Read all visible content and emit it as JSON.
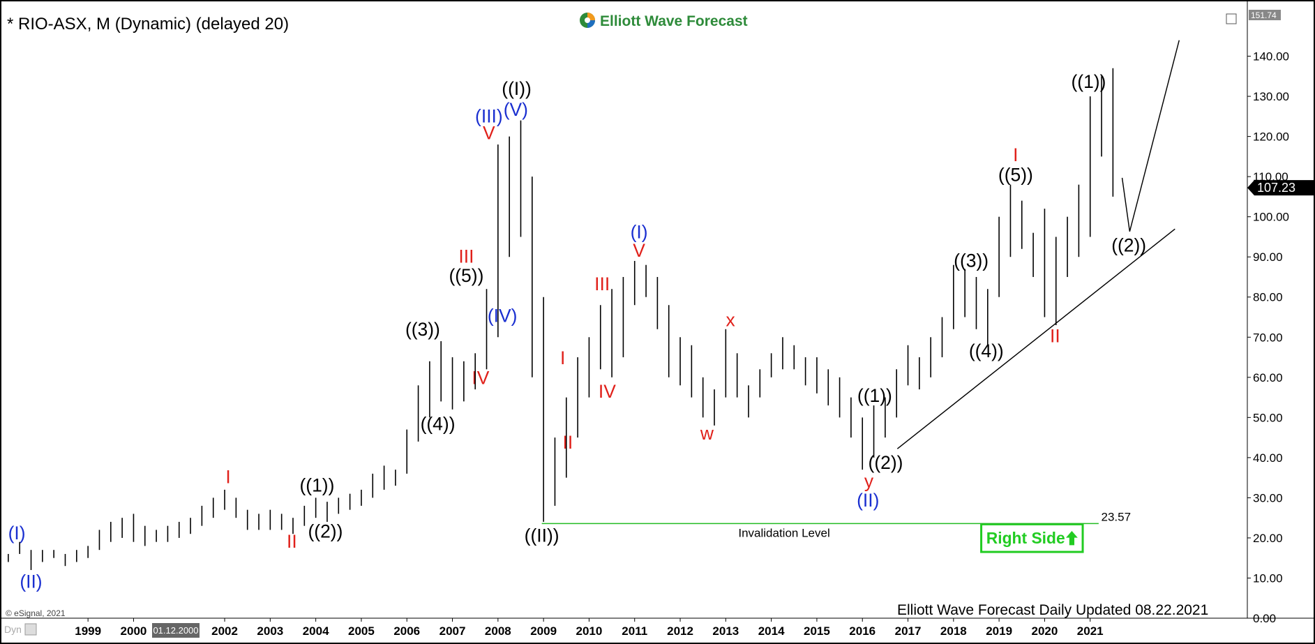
{
  "chart_data": {
    "type": "ohlc",
    "title": "* RIO-ASX, M (Dynamic) (delayed 20)",
    "logo": "Elliott Wave Forecast",
    "footer": "Elliott Wave Forecast Daily Updated 08.22.2021",
    "copyright": "© eSignal, 2021",
    "corner_label": "Dyn",
    "cursor_label": "01.12.2000",
    "color": "#000000",
    "x": [
      1997.25,
      1997.5,
      1997.75,
      1998,
      1998.25,
      1998.5,
      1998.75,
      1999,
      1999.25,
      1999.5,
      1999.75,
      2000,
      2000.25,
      2000.5,
      2000.75,
      2001,
      2001.25,
      2001.5,
      2001.75,
      2002,
      2002.25,
      2002.5,
      2002.75,
      2003,
      2003.25,
      2003.5,
      2003.75,
      2004,
      2004.25,
      2004.5,
      2004.75,
      2005,
      2005.25,
      2005.5,
      2005.75,
      2006,
      2006.25,
      2006.5,
      2006.75,
      2007,
      2007.25,
      2007.5,
      2007.75,
      2008,
      2008.25,
      2008.5,
      2008.75,
      2009,
      2009.25,
      2009.5,
      2009.75,
      2010,
      2010.25,
      2010.5,
      2010.75,
      2011,
      2011.25,
      2011.5,
      2011.75,
      2012,
      2012.25,
      2012.5,
      2012.75,
      2013,
      2013.25,
      2013.5,
      2013.75,
      2014,
      2014.25,
      2014.5,
      2014.75,
      2015,
      2015.25,
      2015.5,
      2015.75,
      2016,
      2016.25,
      2016.5,
      2016.75,
      2017,
      2017.25,
      2017.5,
      2017.75,
      2018,
      2018.25,
      2018.5,
      2018.75,
      2019,
      2019.25,
      2019.5,
      2019.75,
      2020,
      2020.25,
      2020.5,
      2020.75,
      2021,
      2021.25,
      2021.5
    ],
    "low": [
      14,
      16,
      12,
      14,
      15,
      13,
      14,
      15,
      17,
      19,
      20,
      19,
      18,
      19,
      19,
      20,
      21,
      23,
      25,
      27,
      25,
      22,
      22,
      22,
      22,
      21,
      23,
      25,
      24,
      26,
      27,
      28,
      30,
      32,
      33,
      36,
      44,
      50,
      54,
      52,
      54,
      57,
      62,
      70,
      90,
      95,
      60,
      24,
      28,
      35,
      45,
      55,
      62,
      60,
      65,
      78,
      80,
      72,
      60,
      58,
      55,
      50,
      48,
      55,
      55,
      50,
      55,
      60,
      62,
      62,
      58,
      56,
      53,
      50,
      45,
      37,
      40,
      45,
      50,
      58,
      57,
      60,
      65,
      72,
      75,
      72,
      68,
      80,
      90,
      92,
      85,
      75,
      73,
      85,
      90,
      95,
      115,
      105
    ],
    "high": [
      16,
      19,
      17,
      17,
      17,
      16,
      17,
      18,
      22,
      24,
      25,
      26,
      23,
      22,
      23,
      24,
      25,
      28,
      30,
      32,
      30,
      27,
      26,
      27,
      26,
      25,
      28,
      30,
      29,
      30,
      31,
      32,
      36,
      38,
      37,
      47,
      58,
      64,
      69,
      65,
      64,
      66,
      82,
      118,
      120,
      124,
      110,
      80,
      45,
      55,
      65,
      70,
      78,
      82,
      85,
      89,
      88,
      85,
      78,
      70,
      68,
      60,
      57,
      72,
      66,
      58,
      62,
      66,
      70,
      68,
      65,
      65,
      62,
      60,
      55,
      50,
      53,
      55,
      62,
      68,
      65,
      70,
      75,
      88,
      87,
      85,
      82,
      100,
      108,
      104,
      96,
      102,
      95,
      100,
      108,
      130,
      135,
      137
    ],
    "xlim": [
      1997.16,
      2024.45
    ],
    "ylim": [
      0,
      151.74
    ],
    "xticks": [
      1999,
      2000,
      2002,
      2003,
      2004,
      2005,
      2006,
      2007,
      2008,
      2009,
      2010,
      2011,
      2012,
      2013,
      2014,
      2015,
      2016,
      2017,
      2018,
      2019,
      2020,
      2021
    ],
    "yticks": [
      {
        "value": 0,
        "label": "0.00"
      },
      {
        "value": 10,
        "label": "10.00"
      },
      {
        "value": 20,
        "label": "20.00"
      },
      {
        "value": 30,
        "label": "30.00"
      },
      {
        "value": 40,
        "label": "40.00"
      },
      {
        "value": 50,
        "label": "50.00"
      },
      {
        "value": 60,
        "label": "60.00"
      },
      {
        "value": 70,
        "label": "70.00"
      },
      {
        "value": 80,
        "label": "80.00"
      },
      {
        "value": 90,
        "label": "90.00"
      },
      {
        "value": 100,
        "label": "100.00"
      },
      {
        "value": 110,
        "label": "110.00"
      },
      {
        "value": 120,
        "label": "120.00"
      },
      {
        "value": 130,
        "label": "130.00"
      },
      {
        "value": 140,
        "label": "140.00"
      }
    ],
    "axis_top_label": "151.74",
    "last_price": 107.23,
    "invalidation_level": 23.57,
    "invalidation_label": "Invalidation Level",
    "invalidation_color": "#22bb22",
    "right_side_label": "Right Side",
    "annotations": [
      {
        "text": "(I)",
        "color": "#1a2fd0"
      },
      {
        "text": "(II)",
        "color": "#1a2fd0"
      },
      {
        "text": "I",
        "color": "#e0201a"
      },
      {
        "text": "II",
        "color": "#e0201a"
      },
      {
        "text": "((1))",
        "color": "#000000"
      },
      {
        "text": "((2))",
        "color": "#000000"
      },
      {
        "text": "((3))",
        "color": "#000000"
      },
      {
        "text": "((4))",
        "color": "#000000"
      },
      {
        "text": "((5))",
        "color": "#000000"
      },
      {
        "text": "III",
        "color": "#e0201a"
      },
      {
        "text": "IV",
        "color": "#e0201a"
      },
      {
        "text": "(III)",
        "color": "#1a2fd0"
      },
      {
        "text": "V",
        "color": "#e0201a"
      },
      {
        "text": "(V)",
        "color": "#1a2fd0"
      },
      {
        "text": "((I))",
        "color": "#000000"
      },
      {
        "text": "(IV)",
        "color": "#1a2fd0"
      },
      {
        "text": "((II))",
        "color": "#000000"
      },
      {
        "text": "I",
        "color": "#e0201a"
      },
      {
        "text": "II",
        "color": "#e0201a"
      },
      {
        "text": "III",
        "color": "#e0201a"
      },
      {
        "text": "IV",
        "color": "#e0201a"
      },
      {
        "text": "(I)",
        "color": "#1a2fd0"
      },
      {
        "text": "V",
        "color": "#e0201a"
      },
      {
        "text": "x",
        "color": "#e0201a"
      },
      {
        "text": "w",
        "color": "#e0201a"
      },
      {
        "text": "((1))",
        "color": "#000000"
      },
      {
        "text": "((2))",
        "color": "#000000"
      },
      {
        "text": "y",
        "color": "#e0201a"
      },
      {
        "text": "(II)",
        "color": "#1a2fd0"
      },
      {
        "text": "((3))",
        "color": "#000000"
      },
      {
        "text": "((4))",
        "color": "#000000"
      },
      {
        "text": "I",
        "color": "#e0201a"
      },
      {
        "text": "((5))",
        "color": "#000000"
      },
      {
        "text": "II",
        "color": "#e0201a"
      },
      {
        "text": "((1))",
        "color": "#000000"
      },
      {
        "text": "((2))",
        "color": "#000000"
      }
    ]
  }
}
